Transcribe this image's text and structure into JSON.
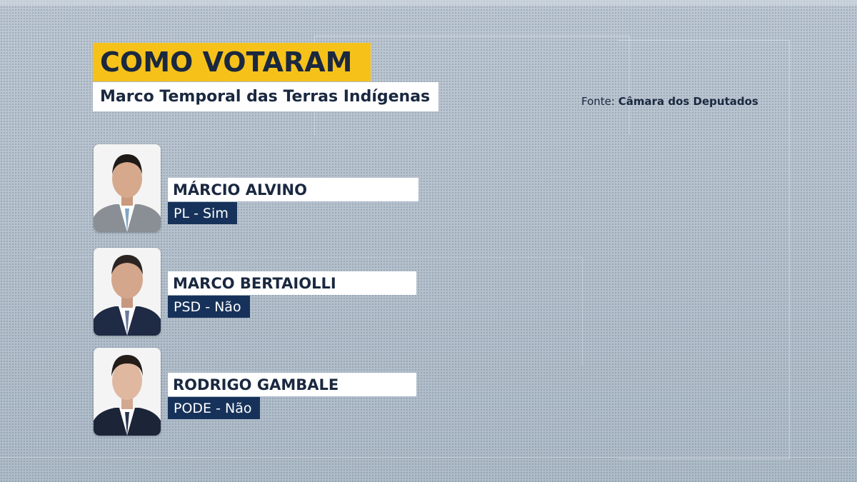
{
  "header": {
    "title": "COMO VOTARAM",
    "subtitle": "Marco Temporal das Terras Indígenas",
    "source_label": "Fonte:",
    "source_value": "Câmara dos Deputados"
  },
  "colors": {
    "title_bg": "#f6c21a",
    "text_dark": "#1a2840",
    "party_bg": "#17325a",
    "background": "#b4c0cc"
  },
  "members": [
    {
      "name": "MÁRCIO ALVINO",
      "party_vote": "PL - Sim"
    },
    {
      "name": "MARCO BERTAIOLLI",
      "party_vote": "PSD - Não"
    },
    {
      "name": "RODRIGO GAMBALE",
      "party_vote": "PODE - Não"
    }
  ]
}
